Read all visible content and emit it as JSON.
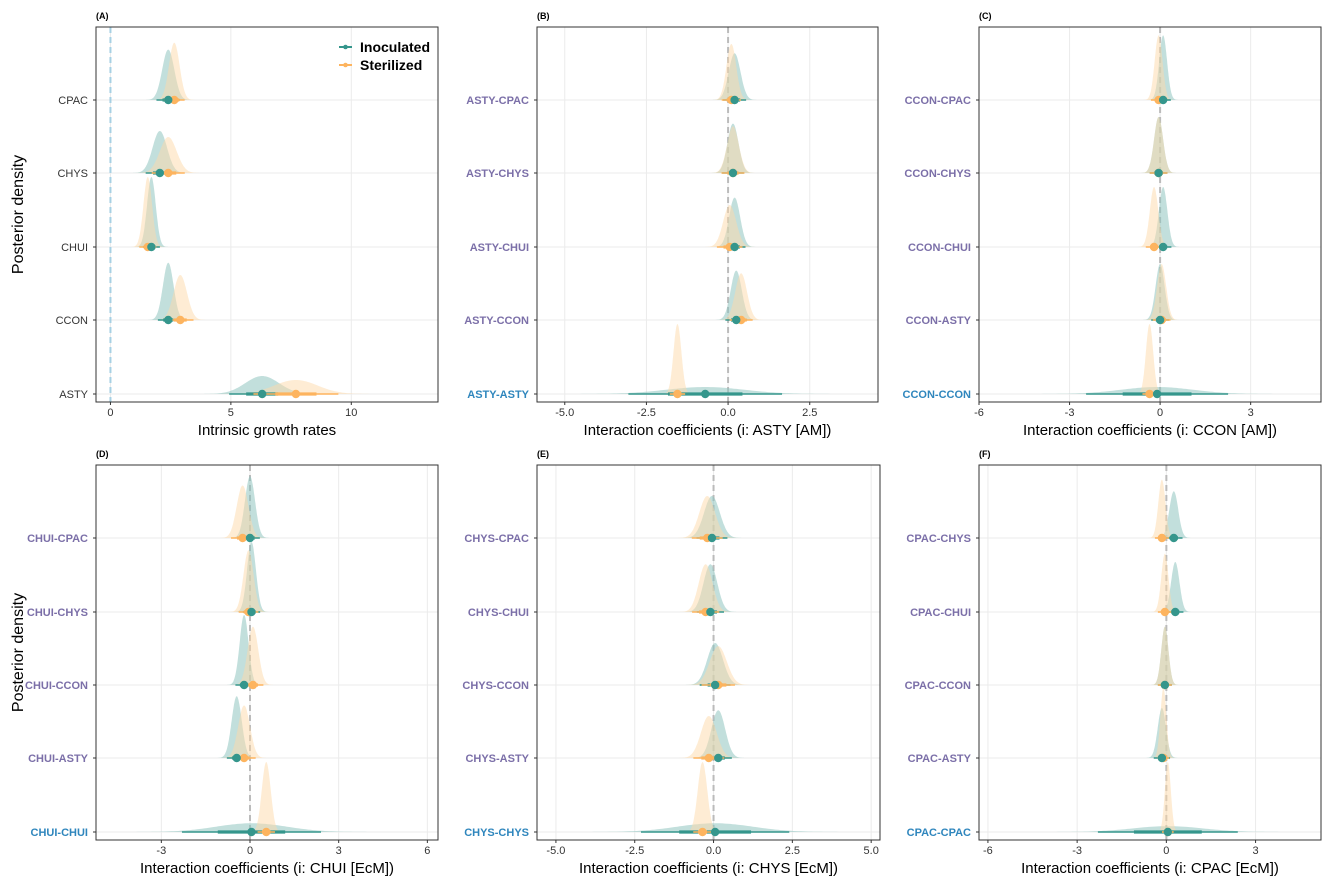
{
  "chart_data": [
    {
      "type": "density-ridgeline",
      "tag": "(A)",
      "xlabel": "Intrinsic growth rates",
      "ylabel": "Posterior density",
      "xlim": [
        -0.6,
        13.6
      ],
      "xticks": [
        0,
        5,
        10
      ],
      "xtick_labels": [
        "0",
        "5",
        "10"
      ],
      "ref_line": 0,
      "ref_color": "#a6d0e4",
      "label_style": "plain",
      "legend": {
        "placement": "top-right",
        "entries": [
          "Inoculated",
          "Sterilized"
        ]
      },
      "rows": [
        {
          "label": "CPAC",
          "inoculated": {
            "mean": 2.4,
            "sd": 0.25
          },
          "sterilized": {
            "mean": 2.65,
            "sd": 0.22
          }
        },
        {
          "label": "CHYS",
          "inoculated": {
            "mean": 2.05,
            "sd": 0.3
          },
          "sterilized": {
            "mean": 2.4,
            "sd": 0.35
          }
        },
        {
          "label": "CHUI",
          "inoculated": {
            "mean": 1.7,
            "sd": 0.18
          },
          "sterilized": {
            "mean": 1.55,
            "sd": 0.18
          }
        },
        {
          "label": "CCON",
          "inoculated": {
            "mean": 2.4,
            "sd": 0.22
          },
          "sterilized": {
            "mean": 2.9,
            "sd": 0.28
          }
        },
        {
          "label": "ASTY",
          "inoculated": {
            "mean": 6.3,
            "sd": 0.7
          },
          "sterilized": {
            "mean": 7.7,
            "sd": 0.9
          }
        }
      ]
    },
    {
      "type": "density-ridgeline",
      "tag": "(B)",
      "xlabel": "Interaction coefficients (i: ASTY [AM])",
      "xlim": [
        -5.85,
        4.59
      ],
      "xticks": [
        -5,
        -2.5,
        0,
        2.5
      ],
      "xtick_labels": [
        "-5.0",
        "-2.5",
        "0.0",
        "2.5"
      ],
      "ref_line": 0,
      "ref_color": "#bbbbbb",
      "rows": [
        {
          "label": "ASTY-CPAC",
          "inoculated": {
            "mean": 0.2,
            "sd": 0.18
          },
          "sterilized": {
            "mean": 0.1,
            "sd": 0.15
          }
        },
        {
          "label": "ASTY-CHYS",
          "inoculated": {
            "mean": 0.15,
            "sd": 0.17
          },
          "sterilized": {
            "mean": 0.15,
            "sd": 0.18
          }
        },
        {
          "label": "ASTY-CHUI",
          "inoculated": {
            "mean": 0.2,
            "sd": 0.17
          },
          "sterilized": {
            "mean": 0.05,
            "sd": 0.2
          }
        },
        {
          "label": "ASTY-CCON",
          "inoculated": {
            "mean": 0.25,
            "sd": 0.17
          },
          "sterilized": {
            "mean": 0.4,
            "sd": 0.18
          }
        },
        {
          "label": "ASTY-ASTY",
          "self": true,
          "inoculated": {
            "mean": -0.7,
            "sd": 1.2
          },
          "sterilized": {
            "mean": -1.55,
            "sd": 0.12
          }
        }
      ]
    },
    {
      "type": "density-ridgeline",
      "tag": "(C)",
      "xlabel": "Interaction coefficients (i: CCON [AM])",
      "xlim": [
        -6,
        5.33
      ],
      "xticks": [
        -6,
        -3,
        0,
        3
      ],
      "xtick_labels": [
        "-6",
        "-3",
        "0",
        "3"
      ],
      "ref_line": 0,
      "ref_color": "#bbbbbb",
      "rows": [
        {
          "label": "CCON-CPAC",
          "inoculated": {
            "mean": 0.1,
            "sd": 0.13
          },
          "sterilized": {
            "mean": -0.05,
            "sd": 0.13
          }
        },
        {
          "label": "CCON-CHYS",
          "inoculated": {
            "mean": -0.05,
            "sd": 0.15
          },
          "sterilized": {
            "mean": -0.05,
            "sd": 0.15
          }
        },
        {
          "label": "CCON-CHUI",
          "inoculated": {
            "mean": 0.1,
            "sd": 0.14
          },
          "sterilized": {
            "mean": -0.2,
            "sd": 0.14
          }
        },
        {
          "label": "CCON-ASTY",
          "inoculated": {
            "mean": 0.0,
            "sd": 0.15
          },
          "sterilized": {
            "mean": 0.05,
            "sd": 0.15
          }
        },
        {
          "label": "CCON-CCON",
          "self": true,
          "inoculated": {
            "mean": -0.1,
            "sd": 1.2
          },
          "sterilized": {
            "mean": -0.35,
            "sd": 0.12
          }
        }
      ]
    },
    {
      "type": "density-ridgeline",
      "tag": "(D)",
      "xlabel": "Interaction coefficients (i: CHUI [EcM])",
      "ylabel": "Posterior density",
      "xlim": [
        -5.21,
        6.36
      ],
      "xticks": [
        -3,
        0,
        3,
        6
      ],
      "xtick_labels": [
        "-3",
        "0",
        "3",
        "6"
      ],
      "ref_line": 0,
      "ref_color": "#bbbbbb",
      "rows": [
        {
          "label": "CHUI-CPAC",
          "inoculated": {
            "mean": 0.0,
            "sd": 0.17
          },
          "sterilized": {
            "mean": -0.25,
            "sd": 0.2
          }
        },
        {
          "label": "CHUI-CHYS",
          "inoculated": {
            "mean": 0.05,
            "sd": 0.15
          },
          "sterilized": {
            "mean": -0.05,
            "sd": 0.17
          }
        },
        {
          "label": "CHUI-CCON",
          "inoculated": {
            "mean": -0.2,
            "sd": 0.15
          },
          "sterilized": {
            "mean": 0.1,
            "sd": 0.18
          }
        },
        {
          "label": "CHUI-ASTY",
          "inoculated": {
            "mean": -0.45,
            "sd": 0.17
          },
          "sterilized": {
            "mean": -0.2,
            "sd": 0.2
          }
        },
        {
          "label": "CHUI-CHUI",
          "self": true,
          "inoculated": {
            "mean": 0.05,
            "sd": 1.2
          },
          "sterilized": {
            "mean": 0.55,
            "sd": 0.15
          }
        }
      ]
    },
    {
      "type": "density-ridgeline",
      "tag": "(E)",
      "xlabel": "Interaction coefficients (i: CHYS [EcM])",
      "xlim": [
        -5.6,
        5.28
      ],
      "xticks": [
        -5,
        -2.5,
        0,
        2.5,
        5
      ],
      "xtick_labels": [
        "-5.0",
        "-2.5",
        "0.0",
        "2.5",
        "5.0"
      ],
      "ref_line": 0,
      "ref_color": "#bbbbbb",
      "rows": [
        {
          "label": "CHYS-CPAC",
          "inoculated": {
            "mean": -0.05,
            "sd": 0.25
          },
          "sterilized": {
            "mean": -0.2,
            "sd": 0.25
          }
        },
        {
          "label": "CHYS-CHUI",
          "inoculated": {
            "mean": -0.1,
            "sd": 0.22
          },
          "sterilized": {
            "mean": -0.25,
            "sd": 0.22
          }
        },
        {
          "label": "CHYS-CCON",
          "inoculated": {
            "mean": 0.05,
            "sd": 0.25
          },
          "sterilized": {
            "mean": 0.15,
            "sd": 0.27
          }
        },
        {
          "label": "CHYS-ASTY",
          "inoculated": {
            "mean": 0.15,
            "sd": 0.22
          },
          "sterilized": {
            "mean": -0.15,
            "sd": 0.25
          }
        },
        {
          "label": "CHYS-CHYS",
          "self": true,
          "inoculated": {
            "mean": 0.05,
            "sd": 1.2
          },
          "sterilized": {
            "mean": -0.35,
            "sd": 0.15
          }
        }
      ]
    },
    {
      "type": "density-ridgeline",
      "tag": "(F)",
      "xlabel": "Interaction coefficients (i: CPAC [EcM])",
      "xlim": [
        -6.3,
        5.2
      ],
      "xticks": [
        -6,
        -3,
        0,
        3
      ],
      "xtick_labels": [
        "-6",
        "-3",
        "0",
        "3"
      ],
      "ref_line": 0,
      "ref_color": "#bbbbbb",
      "rows": [
        {
          "label": "CPAC-CHYS",
          "inoculated": {
            "mean": 0.25,
            "sd": 0.15
          },
          "sterilized": {
            "mean": -0.15,
            "sd": 0.12
          }
        },
        {
          "label": "CPAC-CHUI",
          "inoculated": {
            "mean": 0.3,
            "sd": 0.14
          },
          "sterilized": {
            "mean": -0.05,
            "sd": 0.12
          }
        },
        {
          "label": "CPAC-CCON",
          "inoculated": {
            "mean": -0.05,
            "sd": 0.12
          },
          "sterilized": {
            "mean": -0.05,
            "sd": 0.12
          }
        },
        {
          "label": "CPAC-ASTY",
          "inoculated": {
            "mean": -0.15,
            "sd": 0.14
          },
          "sterilized": {
            "mean": -0.1,
            "sd": 0.1
          }
        },
        {
          "label": "CPAC-CPAC",
          "self": true,
          "inoculated": {
            "mean": 0.05,
            "sd": 1.2
          },
          "sterilized": {
            "mean": 0.05,
            "sd": 0.1
          }
        }
      ]
    }
  ],
  "colors": {
    "inoculated": "#35968c",
    "inoculated_fill": "#8fc5c0",
    "sterilized": "#fdb45f",
    "sterilized_fill": "#fdd9aa",
    "label_cross": "#7b6fa8",
    "label_self": "#2f86bd"
  }
}
